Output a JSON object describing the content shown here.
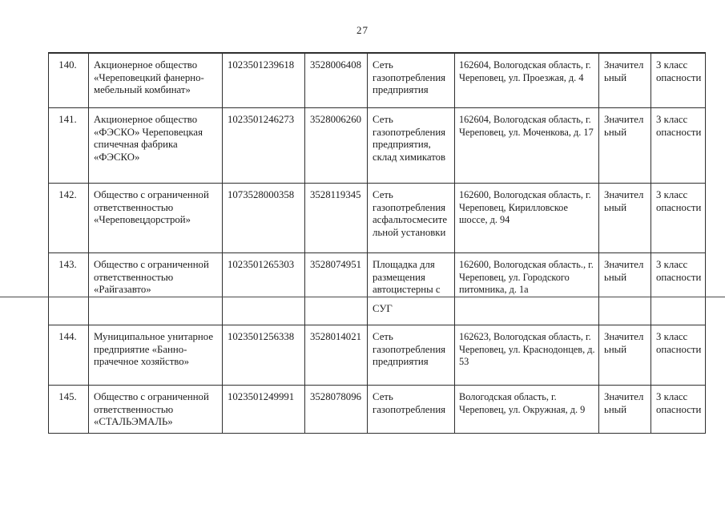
{
  "page": {
    "number": "27"
  },
  "colors": {
    "background": "#ffffff",
    "text": "#1c1c1c",
    "table_border": "#2f2f2f",
    "page_line": "#4a4a4a"
  },
  "table": {
    "rows": [
      {
        "number": "140.",
        "name": "Акционерное общество «Череповецкий фанерно-мебельный комбинат»",
        "ogrn": "1023501239618",
        "inn": "3528006408",
        "object": "Сеть газопотребления предприятия",
        "address": "162604, Вологодская область, г. Череповец, ул. Проезжая, д. 4",
        "significance": "Значител\nьный",
        "hazard_class": "3 класс опасности"
      },
      {
        "number": "141.",
        "name": "Акционерное общество «ФЭСКО» Череповецкая спичечная фабрика «ФЭСКО»",
        "ogrn": "1023501246273",
        "inn": "3528006260",
        "object": "Сеть газопотребления предприятия, склад химикатов",
        "address": "162604, Вологодская область, г. Череповец, ул. Моченкова, д. 17",
        "significance": "Значител\nьный",
        "hazard_class": "3 класс опасности"
      },
      {
        "number": "142.",
        "name": "Общество с ограниченной ответственностью «Череповецдорстрой»",
        "ogrn": "1073528000358",
        "inn": "3528119345",
        "object": "Сеть газопотребления асфальтосмесительной установки",
        "address": "162600, Вологодская область, г. Череповец, Кирилловское шоссе, д. 94",
        "significance": "Значител\nьный",
        "hazard_class": "3 класс опасности"
      },
      {
        "number": "143.",
        "name": "Общество с ограниченной ответственностью «Райгазавто»",
        "ogrn": "1023501265303",
        "inn": "3528074951",
        "object": "Площадка для размещения автоцистерны с",
        "object_continued": "СУГ",
        "address": "162600, Вологодская область., г. Череповец, ул. Городского питомника, д. 1а",
        "significance": "Значител\nьный",
        "hazard_class": "3 класс опасности"
      },
      {
        "number": "144.",
        "name": "Муниципальное унитарное предприятие «Банно-прачечное хозяйство»",
        "ogrn": "1023501256338",
        "inn": "3528014021",
        "object": "Сеть газопотребления предприятия",
        "address": "162623, Вологодская область, г. Череповец, ул. Краснодонцев, д. 53",
        "significance": "Значител\nьный",
        "hazard_class": "3 класс опасности"
      },
      {
        "number": "145.",
        "name": "Общество с ограниченной ответственностью «СТАЛЬЭМАЛЬ»",
        "ogrn": "1023501249991",
        "inn": "3528078096",
        "object": "Сеть газопотребления",
        "address": "Вологодская область,  г. Череповец, ул. Окружная, д. 9",
        "significance": "Значител\nьный",
        "hazard_class": "3 класс опасности"
      }
    ]
  }
}
